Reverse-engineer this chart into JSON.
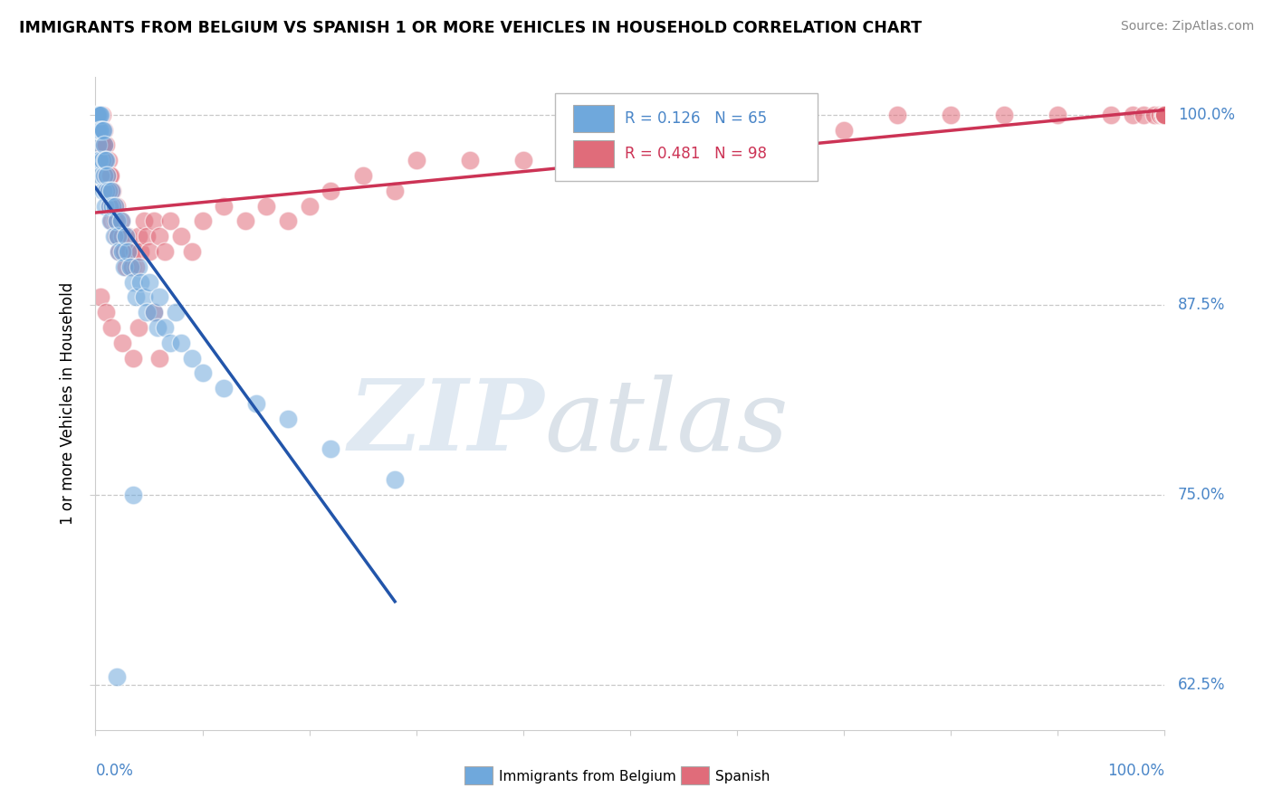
{
  "title": "IMMIGRANTS FROM BELGIUM VS SPANISH 1 OR MORE VEHICLES IN HOUSEHOLD CORRELATION CHART",
  "source": "Source: ZipAtlas.com",
  "ylabel_label": "1 or more Vehicles in Household",
  "legend_label_blue": "Immigrants from Belgium",
  "legend_label_pink": "Spanish",
  "R_blue": 0.126,
  "N_blue": 65,
  "R_pink": 0.481,
  "N_pink": 98,
  "blue_color": "#6fa8dc",
  "pink_color": "#e06c7a",
  "blue_line_color": "#2255aa",
  "pink_line_color": "#cc3355",
  "y_label_color": "#4a86c8",
  "xlim": [
    0.0,
    1.0
  ],
  "ylim": [
    0.595,
    1.025
  ],
  "yticks": [
    0.625,
    0.75,
    0.875,
    1.0
  ],
  "ytick_labels": [
    "62.5%",
    "75.0%",
    "87.5%",
    "100.0%"
  ],
  "blue_x": [
    0.001,
    0.001,
    0.001,
    0.002,
    0.002,
    0.002,
    0.003,
    0.003,
    0.003,
    0.004,
    0.004,
    0.004,
    0.005,
    0.005,
    0.005,
    0.006,
    0.006,
    0.007,
    0.007,
    0.008,
    0.008,
    0.009,
    0.009,
    0.01,
    0.01,
    0.011,
    0.012,
    0.013,
    0.014,
    0.015,
    0.016,
    0.017,
    0.018,
    0.02,
    0.021,
    0.022,
    0.024,
    0.025,
    0.027,
    0.028,
    0.03,
    0.033,
    0.035,
    0.038,
    0.04,
    0.042,
    0.045,
    0.048,
    0.05,
    0.055,
    0.058,
    0.06,
    0.065,
    0.07,
    0.075,
    0.08,
    0.09,
    0.1,
    0.12,
    0.15,
    0.18,
    0.22,
    0.28,
    0.035,
    0.02
  ],
  "blue_y": [
    1.0,
    1.0,
    0.99,
    1.0,
    0.99,
    0.98,
    1.0,
    0.99,
    0.97,
    1.0,
    0.99,
    0.97,
    1.0,
    0.99,
    0.96,
    0.99,
    0.97,
    0.99,
    0.95,
    0.98,
    0.96,
    0.97,
    0.94,
    0.97,
    0.95,
    0.96,
    0.95,
    0.94,
    0.93,
    0.95,
    0.94,
    0.92,
    0.94,
    0.93,
    0.92,
    0.91,
    0.93,
    0.91,
    0.9,
    0.92,
    0.91,
    0.9,
    0.89,
    0.88,
    0.9,
    0.89,
    0.88,
    0.87,
    0.89,
    0.87,
    0.86,
    0.88,
    0.86,
    0.85,
    0.87,
    0.85,
    0.84,
    0.83,
    0.82,
    0.81,
    0.8,
    0.78,
    0.76,
    0.75,
    0.63
  ],
  "pink_x": [
    0.001,
    0.002,
    0.002,
    0.003,
    0.003,
    0.004,
    0.004,
    0.005,
    0.005,
    0.006,
    0.006,
    0.007,
    0.007,
    0.008,
    0.008,
    0.009,
    0.009,
    0.01,
    0.01,
    0.011,
    0.011,
    0.012,
    0.012,
    0.013,
    0.013,
    0.014,
    0.014,
    0.015,
    0.015,
    0.016,
    0.017,
    0.018,
    0.019,
    0.02,
    0.021,
    0.022,
    0.024,
    0.025,
    0.027,
    0.028,
    0.03,
    0.032,
    0.034,
    0.036,
    0.038,
    0.04,
    0.042,
    0.045,
    0.048,
    0.05,
    0.055,
    0.06,
    0.065,
    0.07,
    0.08,
    0.09,
    0.1,
    0.12,
    0.14,
    0.16,
    0.18,
    0.2,
    0.22,
    0.25,
    0.28,
    0.3,
    0.35,
    0.4,
    0.45,
    0.5,
    0.55,
    0.6,
    0.65,
    0.7,
    0.75,
    0.8,
    0.85,
    0.9,
    0.95,
    0.97,
    0.98,
    0.99,
    0.995,
    0.998,
    1.0,
    1.0,
    1.0,
    1.0,
    1.0,
    1.0,
    0.005,
    0.01,
    0.015,
    0.025,
    0.04,
    0.055,
    0.035,
    0.06
  ],
  "pink_y": [
    1.0,
    1.0,
    0.99,
    1.0,
    0.99,
    1.0,
    0.98,
    1.0,
    0.99,
    1.0,
    0.98,
    0.99,
    0.97,
    0.99,
    0.97,
    0.98,
    0.96,
    0.98,
    0.96,
    0.97,
    0.95,
    0.97,
    0.95,
    0.96,
    0.94,
    0.96,
    0.94,
    0.95,
    0.93,
    0.95,
    0.94,
    0.93,
    0.92,
    0.94,
    0.92,
    0.91,
    0.93,
    0.92,
    0.91,
    0.9,
    0.92,
    0.91,
    0.9,
    0.91,
    0.9,
    0.92,
    0.91,
    0.93,
    0.92,
    0.91,
    0.93,
    0.92,
    0.91,
    0.93,
    0.92,
    0.91,
    0.93,
    0.94,
    0.93,
    0.94,
    0.93,
    0.94,
    0.95,
    0.96,
    0.95,
    0.97,
    0.97,
    0.97,
    0.98,
    0.98,
    0.98,
    0.99,
    0.99,
    0.99,
    1.0,
    1.0,
    1.0,
    1.0,
    1.0,
    1.0,
    1.0,
    1.0,
    1.0,
    1.0,
    1.0,
    1.0,
    1.0,
    1.0,
    1.0,
    1.0,
    0.88,
    0.87,
    0.86,
    0.85,
    0.86,
    0.87,
    0.84,
    0.84
  ]
}
